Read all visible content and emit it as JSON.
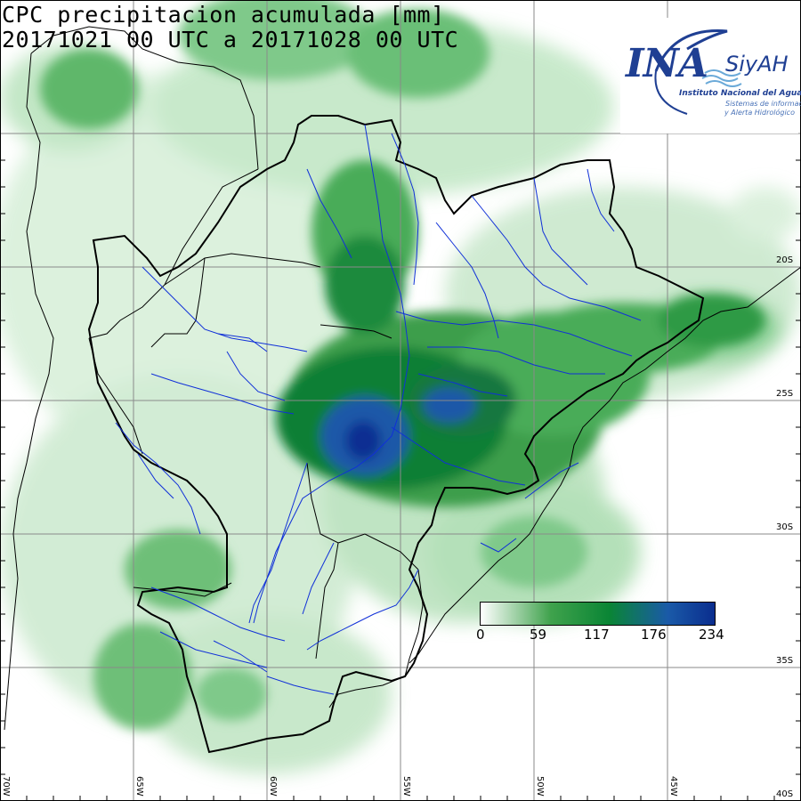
{
  "title": {
    "line1": "CPC precipitacion acumulada [mm]",
    "line2": "20171021 00 UTC a 20171028 00 UTC"
  },
  "logo": {
    "name": "INA",
    "system": "SiyAH",
    "institute": "Instituto Nacional del Agua",
    "subtitle_line1": "Sistemas de información",
    "subtitle_line2": "y Alerta Hidrológico"
  },
  "legend": {
    "labels": [
      "0",
      "59",
      "117",
      "176",
      "234"
    ],
    "colors": [
      "#ffffff",
      "#3fa24c",
      "#0a8535",
      "#1a5aa8",
      "#0a2d8e"
    ]
  },
  "map": {
    "lat_labels": [
      "20S",
      "25S",
      "30S",
      "35S",
      "40S"
    ],
    "lon_labels": [
      "70W",
      "65W",
      "60W",
      "55W",
      "50W",
      "45W"
    ],
    "colors": {
      "grid": "#8a8a8a",
      "border": "#000000",
      "river": "#1030d8"
    }
  }
}
